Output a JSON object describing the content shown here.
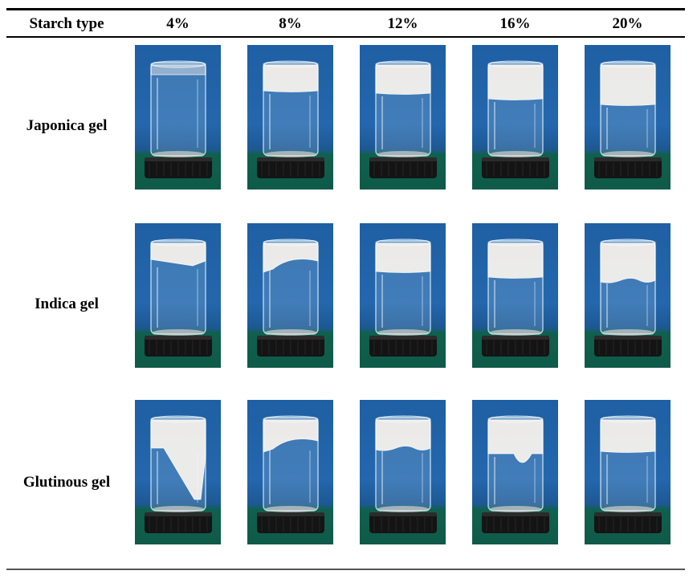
{
  "table": {
    "corner_header": "Starch type",
    "concentrations": [
      "4%",
      "8%",
      "12%",
      "16%",
      "20%"
    ],
    "rows": [
      {
        "label": "Japonica gel",
        "cells": [
          {
            "gel_level": 0.1,
            "shape": "thin"
          },
          {
            "gel_level": 0.28,
            "shape": "flat"
          },
          {
            "gel_level": 0.3,
            "shape": "flat"
          },
          {
            "gel_level": 0.36,
            "shape": "flat"
          },
          {
            "gel_level": 0.42,
            "shape": "flat"
          }
        ]
      },
      {
        "label": "Indica gel",
        "cells": [
          {
            "gel_level": 0.22,
            "shape": "tilted"
          },
          {
            "gel_level": 0.24,
            "shape": "sagging"
          },
          {
            "gel_level": 0.3,
            "shape": "flat"
          },
          {
            "gel_level": 0.36,
            "shape": "flat"
          },
          {
            "gel_level": 0.4,
            "shape": "wavy"
          }
        ]
      },
      {
        "label": "Glutinous gel",
        "cells": [
          {
            "gel_level": 0.3,
            "shape": "diagonal"
          },
          {
            "gel_level": 0.28,
            "shape": "sagging"
          },
          {
            "gel_level": 0.3,
            "shape": "wavy"
          },
          {
            "gel_level": 0.36,
            "shape": "drip"
          },
          {
            "gel_level": 0.34,
            "shape": "flat"
          }
        ]
      }
    ]
  }
}
